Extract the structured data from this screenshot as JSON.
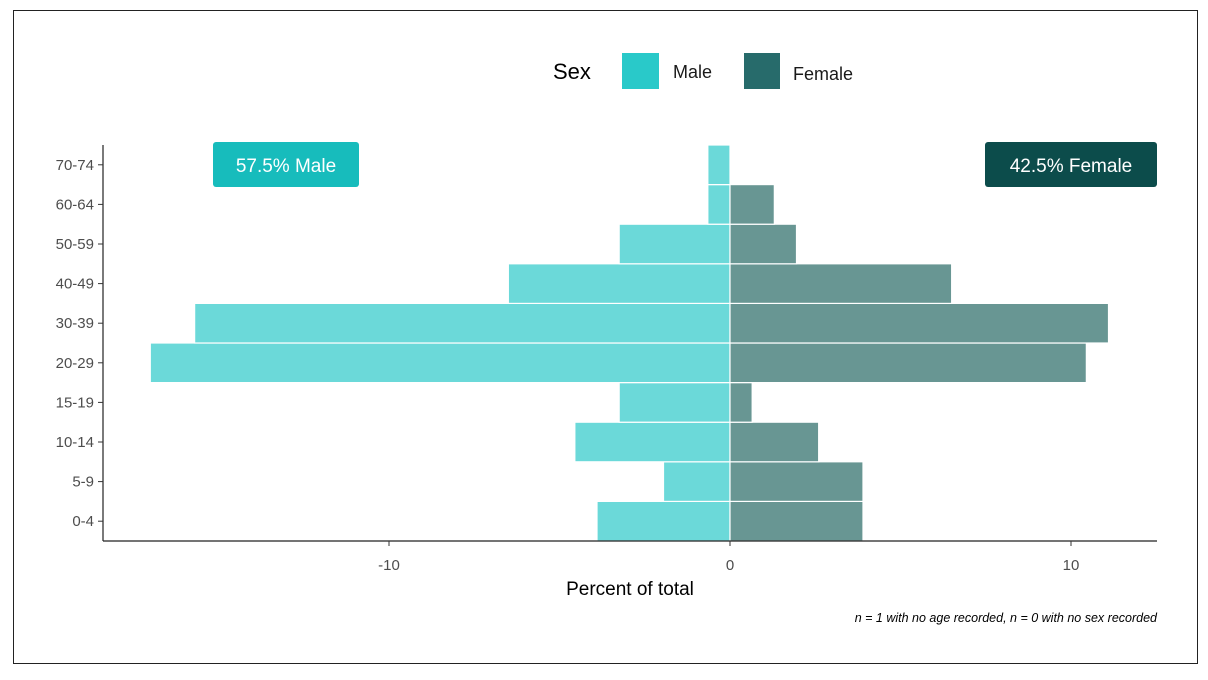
{
  "chart_data": {
    "type": "bar",
    "orientation": "horizontal",
    "subtype": "population-pyramid",
    "categories": [
      "0-4",
      "5-9",
      "10-14",
      "15-19",
      "20-29",
      "30-39",
      "40-49",
      "50-59",
      "60-64",
      "70-74"
    ],
    "series": [
      {
        "name": "Male",
        "color": "#6bd9d9",
        "values": [
          -3.9,
          -1.95,
          -4.55,
          -3.25,
          -17.0,
          -15.7,
          -6.5,
          -3.25,
          -0.65,
          -0.65
        ]
      },
      {
        "name": "Female",
        "color": "#689693",
        "values": [
          3.9,
          3.9,
          2.6,
          0.65,
          10.45,
          11.1,
          6.5,
          1.95,
          1.3,
          0
        ]
      }
    ],
    "xlabel": "Percent of total",
    "ylabel": "",
    "xlim": [
      -18.5,
      12.5
    ],
    "x_ticks": [
      -10,
      0,
      10
    ],
    "x_tick_labels": [
      "-10",
      "0",
      "10"
    ],
    "grid": false,
    "legend": {
      "title": "Sex",
      "placement": "top",
      "entries": [
        {
          "label": "Male",
          "color": "#29c9c9"
        },
        {
          "label": "Female",
          "color": "#276b6b"
        }
      ]
    },
    "annotations": [
      {
        "text": "57.5% Male",
        "placement": "top-left",
        "background": "#17bcbc"
      },
      {
        "text": "42.5% Female",
        "placement": "top-right",
        "background": "#0c4c4b"
      }
    ],
    "caption": "n = 1 with no age recorded, n = 0 with no sex recorded"
  }
}
